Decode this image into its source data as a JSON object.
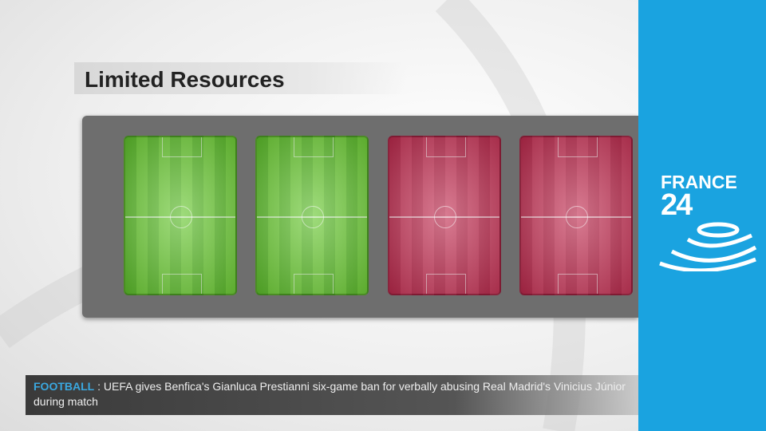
{
  "graphic": {
    "title": "Limited Resources",
    "pitches": [
      {
        "color": "green"
      },
      {
        "color": "green"
      },
      {
        "color": "red"
      },
      {
        "color": "red"
      }
    ]
  },
  "ticker": {
    "category": "FOOTBALL",
    "separator": ":",
    "headline": "UEFA gives Benfica's Gianluca Prestianni six-game ban for verbally abusing Real Madrid's Vinicius Júnior during match"
  },
  "logo": {
    "line1": "FRANCE",
    "line2": "24",
    "color": "#1aa3e0"
  }
}
